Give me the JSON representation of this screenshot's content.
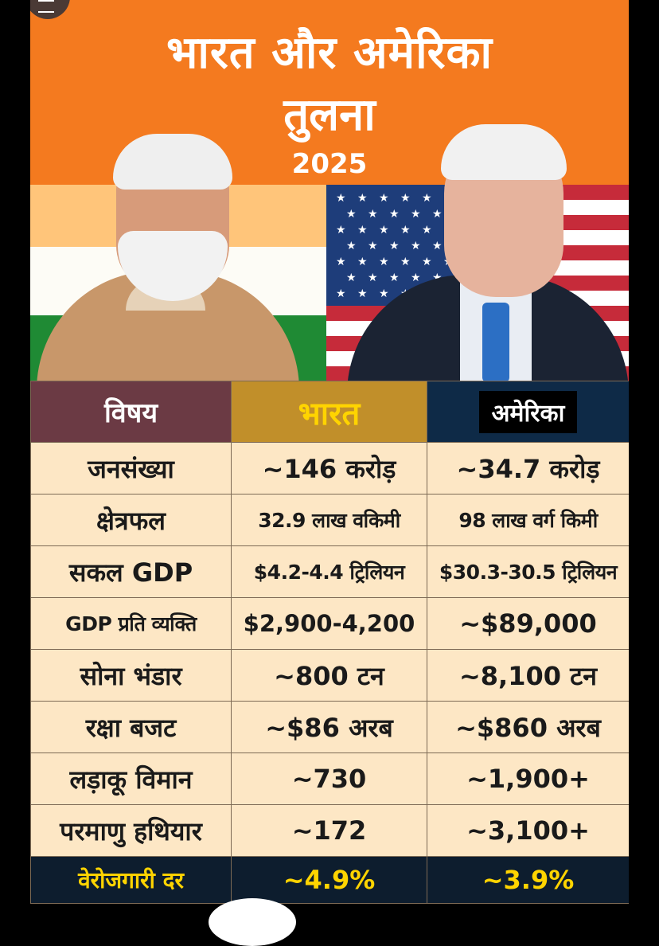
{
  "header": {
    "title_line1": "भारत और अमेरिका",
    "title_line2": "तुलना",
    "year": "2025"
  },
  "table": {
    "headers": [
      "विषय",
      "भारत",
      "अमेरिका"
    ],
    "rows": [
      [
        "जनसंख्या",
        "~146 करोड़",
        "~34.7 करोड़"
      ],
      [
        "क्षेत्रफल",
        "32.9 लाख वकिमी",
        "98 लाख वर्ग किमी"
      ],
      [
        "सकल GDP",
        "$4.2-4.4 ट्रिलियन",
        "$30.3-30.5 ट्रिलियन"
      ],
      [
        "GDP प्रति व्यक्ति",
        "$2,900-4,200",
        "~$89,000"
      ],
      [
        "सोना भंडार",
        "~800 टन",
        "~8,100 टन"
      ],
      [
        "रक्षा बजट",
        "~$86 अरब",
        "~$860 अरब"
      ],
      [
        "लड़ाकू विमान",
        "~730",
        "~1,900+"
      ],
      [
        "परमाणु हथियार",
        "~172",
        "~3,100+"
      ],
      [
        "वेरोजगारी दर",
        "~4.9%",
        "~3.9%"
      ]
    ]
  },
  "colors": {
    "header_orange": "#f47a1f",
    "subject_header": "#6b3a44",
    "india_header": "#c18f2a",
    "us_header": "#0e2a47",
    "cell_bg": "#fde7c5",
    "last_row_bg": "#0d1d2e",
    "highlight_text": "#ffd400"
  }
}
